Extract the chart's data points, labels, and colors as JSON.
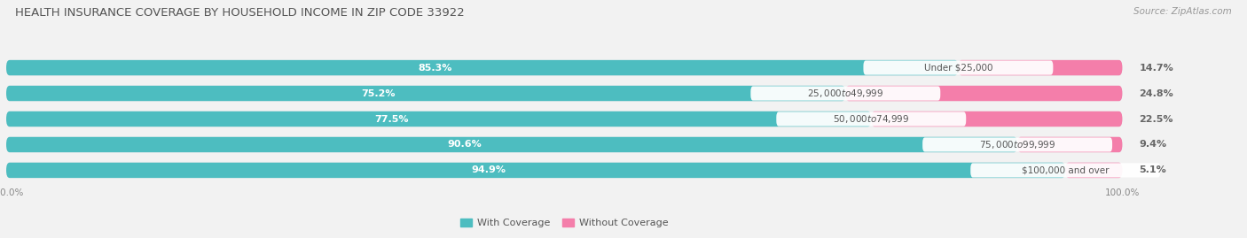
{
  "title": "HEALTH INSURANCE COVERAGE BY HOUSEHOLD INCOME IN ZIP CODE 33922",
  "source": "Source: ZipAtlas.com",
  "categories": [
    "Under $25,000",
    "$25,000 to $49,999",
    "$50,000 to $74,999",
    "$75,000 to $99,999",
    "$100,000 and over"
  ],
  "with_coverage": [
    85.3,
    75.2,
    77.5,
    90.6,
    94.9
  ],
  "without_coverage": [
    14.7,
    24.8,
    22.5,
    9.4,
    5.1
  ],
  "color_with": "#4DBDC0",
  "color_without": "#F47EAA",
  "bg_color": "#F2F2F2",
  "bar_bg_color": "#E0E0E0",
  "title_fontsize": 9.5,
  "label_fontsize": 8.0,
  "tick_fontsize": 7.5,
  "bar_height": 0.6
}
